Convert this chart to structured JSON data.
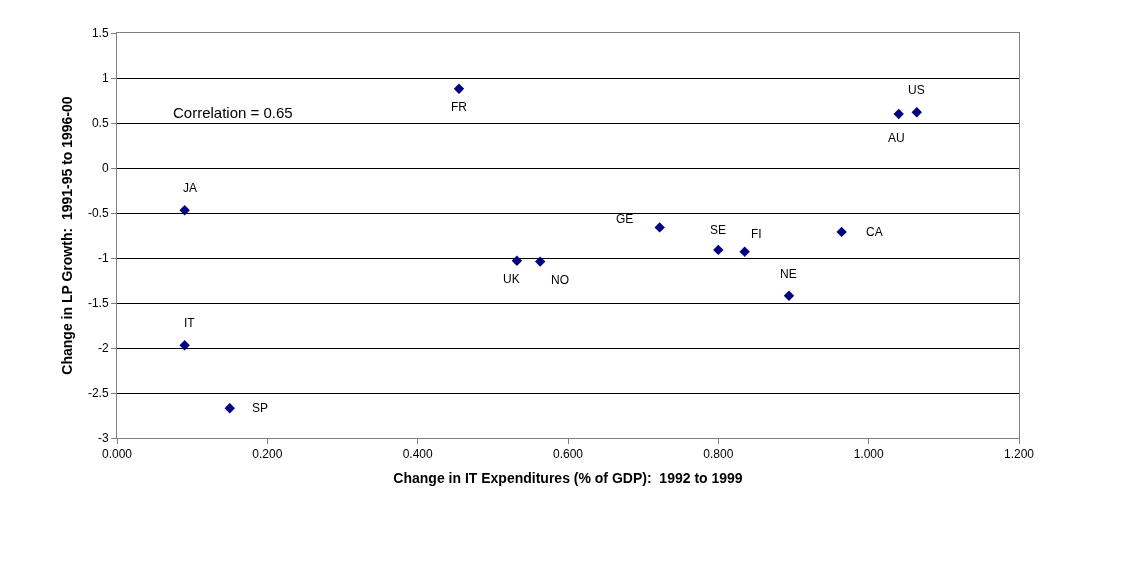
{
  "chart_data": {
    "type": "scatter",
    "xlabel": "Change in IT Expenditures (% of GDP):  1992 to 1999",
    "ylabel": "Change in LP Growth:  1991-95 to 1996-00",
    "x": [
      0.455,
      1.04,
      1.064,
      0.09,
      0.09,
      0.15,
      0.532,
      0.563,
      0.722,
      0.8,
      0.835,
      0.894,
      0.964
    ],
    "series": [
      {
        "color": "#000080",
        "values": [
          0.88,
          0.6,
          0.62,
          -0.47,
          -1.97,
          -2.67,
          -1.03,
          -1.04,
          -0.66,
          -0.91,
          -0.93,
          -1.42,
          -0.71
        ]
      }
    ],
    "marker": "diamond",
    "grid": "y",
    "xlim": [
      0,
      1.2
    ],
    "xticks": [
      {
        "value": 0,
        "label": "0.000"
      },
      {
        "value": 0.2,
        "label": "0.200"
      },
      {
        "value": 0.4,
        "label": "0.400"
      },
      {
        "value": 0.6,
        "label": "0.600"
      },
      {
        "value": 0.8,
        "label": "0.800"
      },
      {
        "value": 1,
        "label": "1.000"
      },
      {
        "value": 1.2,
        "label": "1.200"
      }
    ],
    "ylim": [
      -3,
      1.5
    ],
    "yticks": [
      -3,
      -2.5,
      -2,
      -1.5,
      -1,
      -0.5,
      0,
      0.5,
      1,
      1.5
    ],
    "annotations": [
      "Correlation = 0.65",
      {
        "text": "FR",
        "x": 0.455,
        "y": 0.88
      },
      {
        "text": "AU",
        "x": 1.04,
        "y": 0.6
      },
      {
        "text": "US",
        "x": 1.064,
        "y": 0.62
      },
      {
        "text": "JA",
        "x": 0.09,
        "y": -0.47
      },
      {
        "text": "IT",
        "x": 0.09,
        "y": -1.97
      },
      {
        "text": "SP",
        "x": 0.15,
        "y": -2.67
      },
      {
        "text": "UK",
        "x": 0.532,
        "y": -1.03
      },
      {
        "text": "NO",
        "x": 0.563,
        "y": -1.04
      },
      {
        "text": "GE",
        "x": 0.722,
        "y": -0.66
      },
      {
        "text": "SE",
        "x": 0.8,
        "y": -0.91
      },
      {
        "text": "FI",
        "x": 0.835,
        "y": -0.93
      },
      {
        "text": "NE",
        "x": 0.894,
        "y": -1.42
      },
      {
        "text": "CA",
        "x": 0.964,
        "y": -0.71
      }
    ]
  }
}
